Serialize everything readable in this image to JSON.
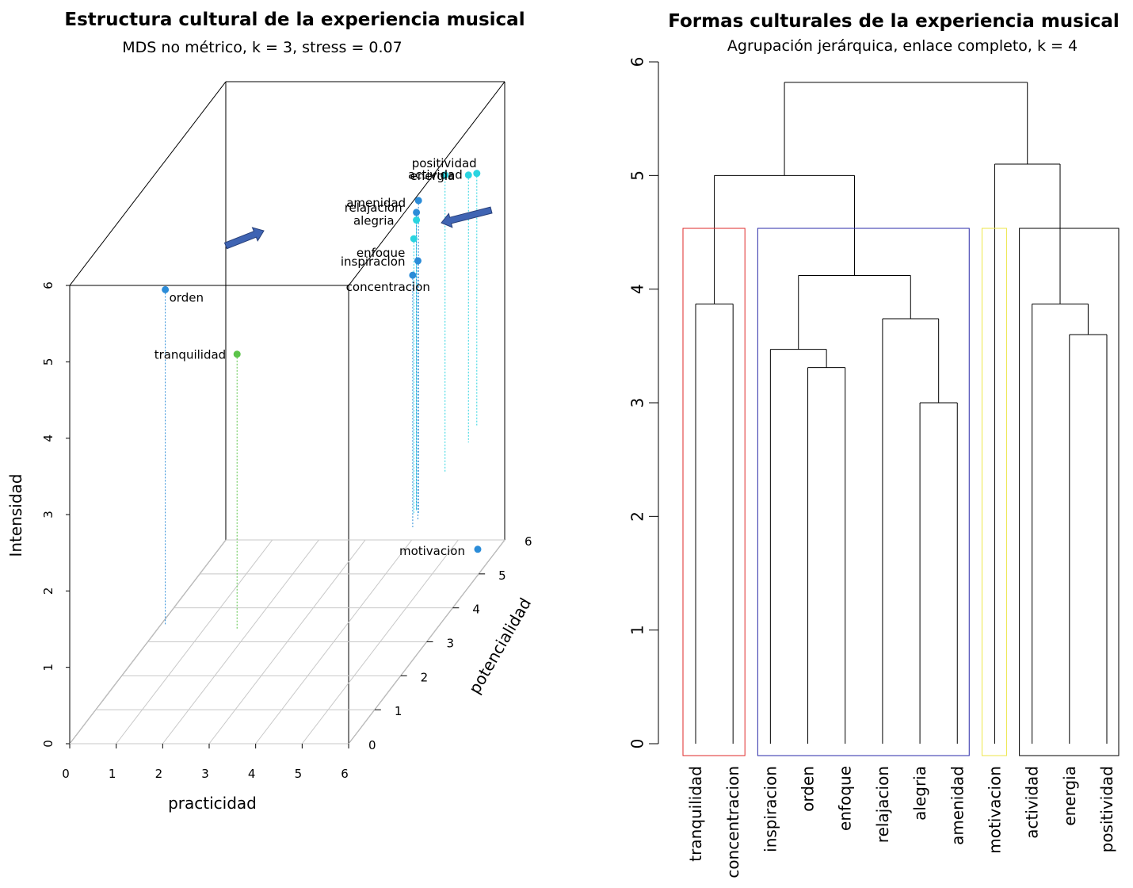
{
  "chart_data": [
    {
      "type": "scatter3d",
      "title": "Estructura cultural de la experiencia musical",
      "subtitle": "MDS no métrico, k = 3, stress = 0.07",
      "xlabel": "practicidad",
      "ylabel": "potencialidad",
      "zlabel": "Intensidad",
      "xlim": [
        0,
        6
      ],
      "ylim": [
        0,
        6
      ],
      "zlim": [
        0,
        6
      ],
      "x_ticks": [
        0,
        1,
        2,
        3,
        4,
        5,
        6
      ],
      "y_ticks": [
        0,
        1,
        2,
        3,
        4,
        5,
        6
      ],
      "z_ticks": [
        0,
        1,
        2,
        3,
        4,
        5,
        6
      ],
      "grid": true,
      "points": [
        {
          "label": "orden",
          "x": 2.0,
          "y": 0.1,
          "z": 5.9,
          "color": "#2B8CD8"
        },
        {
          "label": "tranquilidad",
          "x": 3.6,
          "y": 0.0,
          "z": 5.1,
          "color": "#5CC44A"
        },
        {
          "label": "amenidad",
          "x": 5.6,
          "y": 3.4,
          "z": 5.6,
          "color": "#2B8CD8"
        },
        {
          "label": "relajacion",
          "x": 5.5,
          "y": 3.5,
          "z": 5.4,
          "color": "#2B8CD8"
        },
        {
          "label": "alegria",
          "x": 5.5,
          "y": 3.5,
          "z": 5.3,
          "color": "#2AD4E0"
        },
        {
          "label": "enfoque",
          "x": 5.5,
          "y": 3.4,
          "z": 5.1,
          "color": "#2AD4E0"
        },
        {
          "label": "inspiracion",
          "x": 5.7,
          "y": 3.2,
          "z": 4.9,
          "color": "#2B8CD8"
        },
        {
          "label": "concentracion",
          "x": 5.7,
          "y": 3.0,
          "z": 4.8,
          "color": "#2B8CD8"
        },
        {
          "label": "positividad",
          "x": 5.5,
          "y": 4.6,
          "z": 5.4,
          "color": "#2AD4E0"
        },
        {
          "label": "energia",
          "x": 5.5,
          "y": 5.5,
          "z": 5.0,
          "color": "#2AD4E0"
        },
        {
          "label": "actividad",
          "x": 5.4,
          "y": 6.0,
          "z": 4.8,
          "color": "#2AD4E0"
        },
        {
          "label": "motivacion",
          "x": 5.7,
          "y": 5.5,
          "z": 0.1,
          "color": "#2B8CD8"
        }
      ],
      "arrows": [
        "arrow-pointing-to-inspiracion",
        "arrow-pointing-to-energia"
      ]
    },
    {
      "type": "dendrogram",
      "title": "Formas culturales de la experiencia musical",
      "subtitle": "Agrupación jerárquica, enlace completo, k = 4",
      "ylim": [
        0,
        6
      ],
      "y_ticks": [
        0,
        1,
        2,
        3,
        4,
        5,
        6
      ],
      "leaves": [
        "tranquilidad",
        "concentracion",
        "inspiracion",
        "orden",
        "enfoque",
        "relajacion",
        "alegria",
        "amenidad",
        "motivacion",
        "actividad",
        "energia",
        "positividad"
      ],
      "merges": [
        {
          "left": "alegria",
          "right": "amenidad",
          "height": 3.0
        },
        {
          "left": "orden",
          "right": "enfoque",
          "height": 3.31
        },
        {
          "left": "inspiracion",
          "right": "orden+enfoque",
          "height": 3.47
        },
        {
          "left": "energia",
          "right": "positividad",
          "height": 3.6
        },
        {
          "left": "relajacion",
          "right": "alegria+amenidad",
          "height": 3.74
        },
        {
          "left": "tranquilidad",
          "right": "concentracion",
          "height": 3.87
        },
        {
          "left": "actividad",
          "right": "energia+positividad",
          "height": 3.87
        },
        {
          "left": "inspiracion+orden+enfoque",
          "right": "relajacion+alegria+amenidad",
          "height": 4.12
        },
        {
          "left": "tranquilidad+concentracion",
          "right": "inspiracion..amenidad",
          "height": 5.0
        },
        {
          "left": "motivacion",
          "right": "actividad+energia+positividad",
          "height": 5.1
        },
        {
          "left": "cluster-left",
          "right": "cluster-right",
          "height": 5.82
        }
      ],
      "clusters": [
        {
          "leaves": [
            "tranquilidad",
            "concentracion"
          ],
          "color": "#DF2A2A"
        },
        {
          "leaves": [
            "inspiracion",
            "orden",
            "enfoque",
            "relajacion",
            "alegria",
            "amenidad"
          ],
          "color": "#2A2AA8"
        },
        {
          "leaves": [
            "motivacion"
          ],
          "color": "#EDE64A"
        },
        {
          "leaves": [
            "actividad",
            "energia",
            "positividad"
          ],
          "color": "#000000"
        }
      ]
    }
  ]
}
